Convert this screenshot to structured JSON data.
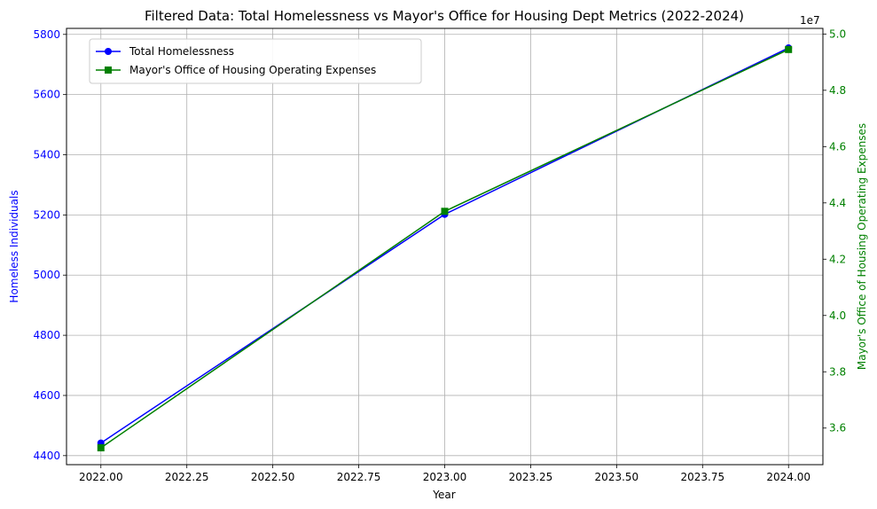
{
  "chart_data": {
    "type": "line",
    "title": "Filtered Data: Total Homelessness vs Mayor's Office for Housing Dept Metrics (2022-2024)",
    "xlabel": "Year",
    "ylabel_left": "Homeless Individuals",
    "ylabel_right": "Mayor's Office of Housing Operating Expenses",
    "right_axis_offset_text": "1e7",
    "x": [
      2022,
      2023,
      2024
    ],
    "xlim": [
      2021.9,
      2024.1
    ],
    "xticks": [
      "2022.00",
      "2022.25",
      "2022.50",
      "2022.75",
      "2023.00",
      "2023.25",
      "2023.50",
      "2023.75",
      "2024.00"
    ],
    "xtick_values": [
      2022.0,
      2022.25,
      2022.5,
      2022.75,
      2023.0,
      2023.25,
      2023.5,
      2023.75,
      2024.0
    ],
    "ylim_left": [
      4370,
      5820
    ],
    "yticks_left": [
      "4400",
      "4600",
      "4800",
      "5000",
      "5200",
      "5400",
      "5600",
      "5800"
    ],
    "ytick_values_left": [
      4400,
      4600,
      4800,
      5000,
      5200,
      5400,
      5600,
      5800
    ],
    "ylim_right": [
      3.47,
      5.02
    ],
    "yticks_right": [
      "3.6",
      "3.8",
      "4.0",
      "4.2",
      "4.4",
      "4.6",
      "4.8",
      "5.0"
    ],
    "ytick_values_right": [
      3.6,
      3.8,
      4.0,
      4.2,
      4.4,
      4.6,
      4.8,
      5.0
    ],
    "grid": true,
    "legend_position": "upper-left",
    "series": [
      {
        "name": "Total Homelessness",
        "axis": "left",
        "values": [
          4442,
          5202,
          5755
        ],
        "color": "#0000ff",
        "marker": "circle"
      },
      {
        "name": "Mayor's Office of Housing Operating Expenses",
        "axis": "right",
        "values": [
          3.53,
          4.37,
          4.945
        ],
        "color": "#008000",
        "marker": "square"
      }
    ]
  }
}
